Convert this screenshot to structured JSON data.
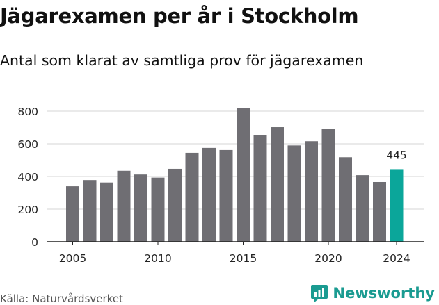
{
  "chart_data": {
    "type": "bar",
    "title": "Jägarexamen per år i Stockholm",
    "subtitle": "Antal som klarat av samtliga prov för jägarexamen",
    "x": [
      2005,
      2006,
      2007,
      2008,
      2009,
      2010,
      2011,
      2012,
      2013,
      2014,
      2015,
      2016,
      2017,
      2018,
      2019,
      2020,
      2021,
      2022,
      2023,
      2024
    ],
    "values": [
      340,
      378,
      363,
      435,
      412,
      393,
      447,
      545,
      575,
      562,
      817,
      655,
      702,
      590,
      616,
      690,
      518,
      408,
      366,
      445
    ],
    "xticks": [
      2005,
      2010,
      2015,
      2020,
      2024
    ],
    "yticks": [
      0,
      200,
      400,
      600,
      800
    ],
    "ylim": [
      0,
      840
    ],
    "annotation": {
      "x": 2024,
      "text": "445"
    },
    "colors": {
      "bar": "#6f6e73",
      "highlight": "#0ba69a"
    },
    "grid": true,
    "legend": "none"
  },
  "source": "Källa: Naturvårdsverket",
  "brand": {
    "name": "Newsworthy",
    "icon": "newsworthy-logo-icon",
    "color": "#1a9b91"
  }
}
